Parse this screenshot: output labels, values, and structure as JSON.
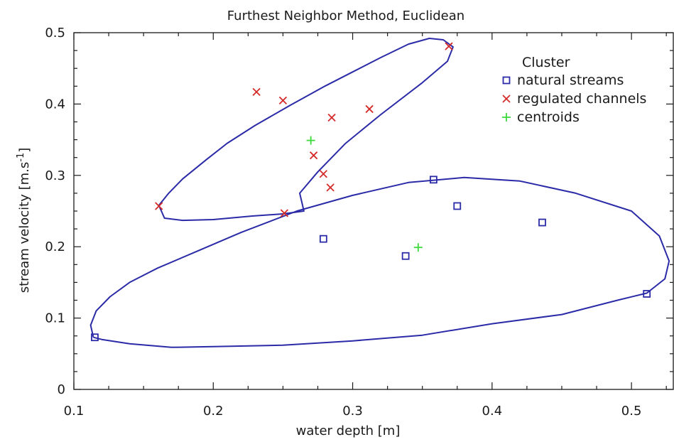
{
  "chart_data": {
    "type": "scatter",
    "title": "Furthest Neighbor Method, Euclidean",
    "xlabel": "water depth [m]",
    "ylabel_main": "stream velocity [m.s",
    "ylabel_sup": "-1",
    "ylabel_end": "]",
    "xlim": [
      0.1,
      0.53
    ],
    "ylim": [
      0,
      0.5
    ],
    "x_ticks": [
      0.1,
      0.2,
      0.3,
      0.4,
      0.5
    ],
    "x_tick_labels": [
      "0.1",
      "0.2",
      "0.3",
      "0.4",
      "0.5"
    ],
    "y_ticks": [
      0,
      0.1,
      0.2,
      0.3,
      0.4,
      0.5
    ],
    "y_tick_labels": [
      "0",
      "0.1",
      "0.2",
      "0.3",
      "0.4",
      "0.5"
    ],
    "legend_title": "Cluster",
    "legend_placement": "top-right",
    "series": [
      {
        "name": "natural streams",
        "marker": "square",
        "color": "#2b2ba8",
        "points": [
          [
            0.115,
            0.073
          ],
          [
            0.279,
            0.211
          ],
          [
            0.338,
            0.187
          ],
          [
            0.358,
            0.294
          ],
          [
            0.375,
            0.257
          ],
          [
            0.436,
            0.234
          ],
          [
            0.511,
            0.134
          ]
        ]
      },
      {
        "name": "regulated channels",
        "marker": "x",
        "color": "#d42a2a",
        "points": [
          [
            0.161,
            0.257
          ],
          [
            0.231,
            0.417
          ],
          [
            0.25,
            0.405
          ],
          [
            0.251,
            0.247
          ],
          [
            0.272,
            0.328
          ],
          [
            0.279,
            0.302
          ],
          [
            0.285,
            0.381
          ],
          [
            0.284,
            0.283
          ],
          [
            0.312,
            0.393
          ],
          [
            0.369,
            0.481
          ]
        ]
      },
      {
        "name": "centroids",
        "marker": "plus",
        "color": "#3cd83c",
        "points": [
          [
            0.27,
            0.349
          ],
          [
            0.347,
            0.199
          ]
        ]
      }
    ],
    "hulls": [
      {
        "color": "#2b2ba8",
        "points": [
          [
            0.161,
            0.258
          ],
          [
            0.168,
            0.275
          ],
          [
            0.178,
            0.295
          ],
          [
            0.195,
            0.322
          ],
          [
            0.21,
            0.345
          ],
          [
            0.23,
            0.37
          ],
          [
            0.255,
            0.398
          ],
          [
            0.28,
            0.425
          ],
          [
            0.3,
            0.445
          ],
          [
            0.32,
            0.465
          ],
          [
            0.34,
            0.484
          ],
          [
            0.355,
            0.492
          ],
          [
            0.365,
            0.49
          ],
          [
            0.372,
            0.48
          ],
          [
            0.368,
            0.46
          ],
          [
            0.35,
            0.43
          ],
          [
            0.32,
            0.385
          ],
          [
            0.295,
            0.345
          ],
          [
            0.275,
            0.305
          ],
          [
            0.262,
            0.275
          ],
          [
            0.265,
            0.25
          ],
          [
            0.25,
            0.246
          ],
          [
            0.228,
            0.243
          ],
          [
            0.2,
            0.238
          ],
          [
            0.178,
            0.237
          ],
          [
            0.165,
            0.24
          ],
          [
            0.161,
            0.258
          ]
        ]
      },
      {
        "color": "#2b2ba8",
        "points": [
          [
            0.114,
            0.073
          ],
          [
            0.112,
            0.09
          ],
          [
            0.116,
            0.11
          ],
          [
            0.126,
            0.13
          ],
          [
            0.14,
            0.15
          ],
          [
            0.16,
            0.17
          ],
          [
            0.19,
            0.195
          ],
          [
            0.22,
            0.22
          ],
          [
            0.26,
            0.25
          ],
          [
            0.3,
            0.272
          ],
          [
            0.34,
            0.29
          ],
          [
            0.38,
            0.297
          ],
          [
            0.42,
            0.292
          ],
          [
            0.46,
            0.275
          ],
          [
            0.5,
            0.25
          ],
          [
            0.52,
            0.215
          ],
          [
            0.527,
            0.18
          ],
          [
            0.524,
            0.155
          ],
          [
            0.511,
            0.135
          ],
          [
            0.49,
            0.125
          ],
          [
            0.45,
            0.105
          ],
          [
            0.4,
            0.092
          ],
          [
            0.35,
            0.076
          ],
          [
            0.3,
            0.068
          ],
          [
            0.25,
            0.062
          ],
          [
            0.2,
            0.06
          ],
          [
            0.17,
            0.059
          ],
          [
            0.14,
            0.064
          ],
          [
            0.12,
            0.07
          ],
          [
            0.114,
            0.073
          ]
        ]
      }
    ]
  }
}
